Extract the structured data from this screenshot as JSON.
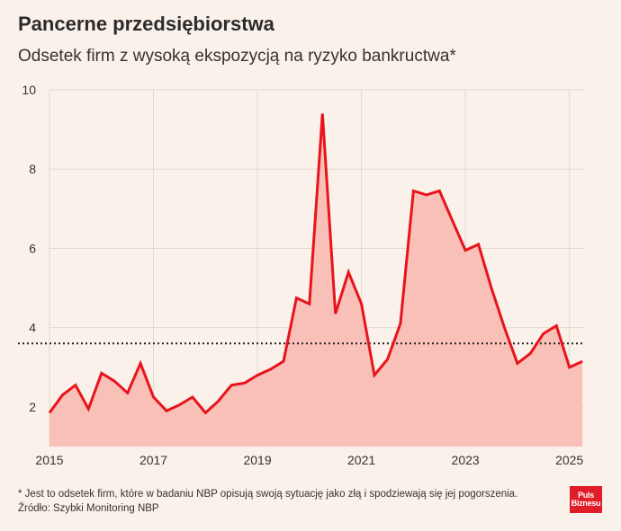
{
  "header": {
    "title": "Pancerne przedsiębiorstwa",
    "subtitle": "Odsetek firm z wysoką ekspozycją na ryzyko bankructwa*"
  },
  "footer": {
    "note": "* Jest to odsetek firm, które w badaniu NBP opisują swoją sytuację jako złą i spodziewają się jej pogorszenia. Źródło: Szybki Monitoring NBP",
    "logo_line1": "Puls",
    "logo_line2": "Biznesu"
  },
  "colors": {
    "line": "#e8141c",
    "area": "#f9c0b8",
    "grid": "#e3d7ce",
    "reference_line": "#222222",
    "background": "#faf1ea"
  },
  "chart_data": {
    "type": "area",
    "xlim": [
      2015,
      2025.3
    ],
    "ylim": [
      1,
      10
    ],
    "y_ticks": [
      2,
      4,
      6,
      8,
      10
    ],
    "x_ticks": [
      2015,
      2017,
      2019,
      2021,
      2023,
      2025
    ],
    "x_tick_labels": [
      "2015",
      "2017",
      "2019",
      "2021",
      "2023",
      "2025"
    ],
    "grid": true,
    "reference_line": {
      "y": 3.6,
      "style": "dotted"
    },
    "x": [
      2015.0,
      2015.25,
      2015.5,
      2015.75,
      2016.0,
      2016.25,
      2016.5,
      2016.75,
      2017.0,
      2017.25,
      2017.5,
      2017.75,
      2018.0,
      2018.25,
      2018.5,
      2018.75,
      2019.0,
      2019.25,
      2019.5,
      2019.75,
      2020.0,
      2020.25,
      2020.5,
      2020.75,
      2021.0,
      2021.25,
      2021.5,
      2021.75,
      2022.0,
      2022.25,
      2022.5,
      2022.75,
      2023.0,
      2023.25,
      2023.5,
      2023.75,
      2024.0,
      2024.25,
      2024.5,
      2024.75,
      2025.0,
      2025.25
    ],
    "series": [
      {
        "values": [
          1.85,
          2.3,
          2.55,
          1.95,
          2.85,
          2.65,
          2.35,
          3.1,
          2.25,
          1.9,
          2.05,
          2.25,
          1.85,
          2.15,
          2.55,
          2.6,
          2.8,
          2.95,
          3.15,
          4.75,
          4.6,
          9.4,
          4.35,
          5.4,
          4.6,
          2.8,
          3.2,
          4.1,
          7.45,
          7.35,
          7.45,
          6.7,
          5.95,
          6.1,
          5.0,
          4.0,
          3.1,
          3.35,
          3.85,
          4.05,
          3.0,
          3.15
        ]
      }
    ]
  }
}
